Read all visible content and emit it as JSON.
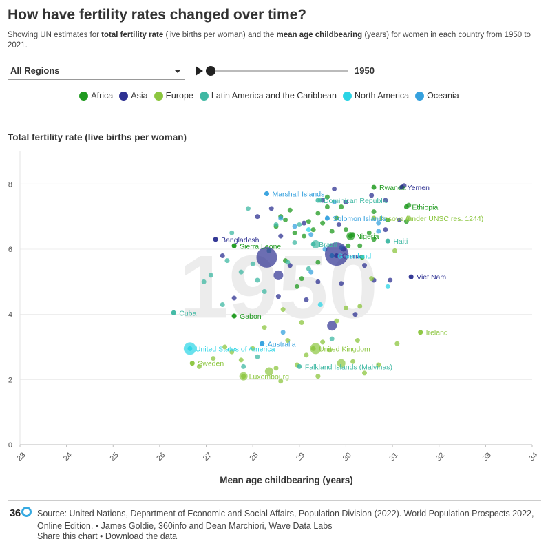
{
  "header": {
    "title": "How have fertility rates changed over time?",
    "subtitle_prefix": "Showing UN estimates for ",
    "subtitle_bold_1": "total fertility rate",
    "subtitle_mid_1": " (live births per woman) and the ",
    "subtitle_bold_2": "mean age childbearing",
    "subtitle_mid_2": " (years) for women in each country from 1950 to 2021."
  },
  "controls": {
    "region_selected": "All Regions",
    "year": "1950",
    "year_progress": 0.0
  },
  "legend": [
    {
      "label": "Africa",
      "color": "#1f9a1f"
    },
    {
      "label": "Asia",
      "color": "#2e3192"
    },
    {
      "label": "Europe",
      "color": "#8cc63f"
    },
    {
      "label": "Latin America and the Caribbean",
      "color": "#3fb8a3"
    },
    {
      "label": "North America",
      "color": "#2ad4e5"
    },
    {
      "label": "Oceania",
      "color": "#36a1de"
    }
  ],
  "chart_data": {
    "type": "scatter",
    "year_watermark": "1950",
    "ylabel": "Total fertility rate (live births per woman)",
    "xlabel": "Mean age childbearing (years)",
    "xlim": [
      23,
      34
    ],
    "ylim": [
      0,
      9
    ],
    "x_ticks": [
      "23",
      "24",
      "25",
      "26",
      "27",
      "28",
      "29",
      "30",
      "31",
      "32",
      "33",
      "34"
    ],
    "y_ticks": [
      "0",
      "2",
      "4",
      "6",
      "8"
    ],
    "labeled_points": [
      {
        "name": "Rwanda",
        "region": "Africa",
        "x": 30.6,
        "y": 7.9,
        "label": "Rwanda"
      },
      {
        "name": "Yemen",
        "region": "Asia",
        "x": 31.2,
        "y": 7.9,
        "label": "Yemen"
      },
      {
        "name": "Marshall Islands",
        "region": "Oceania",
        "x": 28.3,
        "y": 7.7,
        "label": "Marshall Islands"
      },
      {
        "name": "Dominican Republic",
        "region": "Latin America and the Caribbean",
        "x": 29.4,
        "y": 7.5,
        "label": "Dominican Republic"
      },
      {
        "name": "Ethiopia",
        "region": "Africa",
        "x": 31.3,
        "y": 7.3,
        "label": "Ethiopia"
      },
      {
        "name": "Kosovo",
        "region": "Europe",
        "x": 30.6,
        "y": 6.95,
        "label": "Kosovo (under UNSC res. 1244)"
      },
      {
        "name": "Solomon Islands",
        "region": "Oceania",
        "x": 29.6,
        "y": 6.95,
        "label": "Solomon Islands"
      },
      {
        "name": "Nigeria",
        "region": "Africa",
        "x": 30.1,
        "y": 6.4,
        "label": "Nigeria"
      },
      {
        "name": "Haiti",
        "region": "Latin America and the Caribbean",
        "x": 30.9,
        "y": 6.25,
        "label": "Haiti"
      },
      {
        "name": "Bangladesh",
        "region": "Asia",
        "x": 27.2,
        "y": 6.3,
        "label": "Bangladesh"
      },
      {
        "name": "Sierra Leone",
        "region": "Africa",
        "x": 27.6,
        "y": 6.1,
        "label": "Sierra Leone"
      },
      {
        "name": "Brazil",
        "region": "Latin America and the Caribbean",
        "x": 29.3,
        "y": 6.15,
        "label": "Brazil"
      },
      {
        "name": "China",
        "region": "Asia",
        "x": 29.8,
        "y": 5.8,
        "label": "China"
      },
      {
        "name": "Greenland",
        "region": "North America",
        "x": 29.7,
        "y": 5.8,
        "label": "Greenland"
      },
      {
        "name": "Viet Nam",
        "region": "Asia",
        "x": 31.4,
        "y": 5.15,
        "label": "Viet Nam"
      },
      {
        "name": "Cuba",
        "region": "Latin America and the Caribbean",
        "x": 26.3,
        "y": 4.05,
        "label": "Cuba"
      },
      {
        "name": "Gabon",
        "region": "Africa",
        "x": 27.6,
        "y": 3.95,
        "label": "Gabon"
      },
      {
        "name": "Ireland",
        "region": "Europe",
        "x": 31.6,
        "y": 3.45,
        "label": "Ireland"
      },
      {
        "name": "United States of America",
        "region": "North America",
        "x": 26.65,
        "y": 2.95,
        "label": "United States of America"
      },
      {
        "name": "Australia",
        "region": "Oceania",
        "x": 28.2,
        "y": 3.1,
        "label": "Australia"
      },
      {
        "name": "United Kingdom",
        "region": "Europe",
        "x": 29.3,
        "y": 2.95,
        "label": "United Kingdom"
      },
      {
        "name": "Sweden",
        "region": "Europe",
        "x": 26.7,
        "y": 2.5,
        "label": "Sweden"
      },
      {
        "name": "Falkland Islands (Malvinas)",
        "region": "Latin America and the Caribbean",
        "x": 29.0,
        "y": 2.4,
        "label": "Falkland Islands (Malvinas)"
      },
      {
        "name": "Luxembourg",
        "region": "Europe",
        "x": 27.8,
        "y": 2.1,
        "label": "Luxembourg"
      }
    ],
    "bubbles": [
      {
        "region": "Asia",
        "x": 28.3,
        "y": 5.75,
        "r": 15
      },
      {
        "region": "Asia",
        "x": 29.8,
        "y": 5.85,
        "r": 17
      },
      {
        "region": "Asia",
        "x": 28.55,
        "y": 5.2,
        "r": 7
      },
      {
        "region": "Asia",
        "x": 29.7,
        "y": 3.65,
        "r": 7
      },
      {
        "region": "North America",
        "x": 26.65,
        "y": 2.95,
        "r": 9
      },
      {
        "region": "Europe",
        "x": 29.35,
        "y": 2.95,
        "r": 8
      },
      {
        "region": "Europe",
        "x": 29.9,
        "y": 2.5,
        "r": 6
      },
      {
        "region": "Europe",
        "x": 27.8,
        "y": 2.1,
        "r": 6
      },
      {
        "region": "Europe",
        "x": 28.35,
        "y": 2.25,
        "r": 6
      },
      {
        "region": "Latin America and the Caribbean",
        "x": 29.35,
        "y": 6.15,
        "r": 6
      },
      {
        "region": "Africa",
        "x": 30.1,
        "y": 6.4,
        "r": 6
      }
    ],
    "points": [
      {
        "region": "Africa",
        "x": 27.6,
        "y": 6.1
      },
      {
        "region": "Africa",
        "x": 28.5,
        "y": 6.7
      },
      {
        "region": "Africa",
        "x": 28.7,
        "y": 6.9
      },
      {
        "region": "Africa",
        "x": 28.8,
        "y": 7.2
      },
      {
        "region": "Africa",
        "x": 28.9,
        "y": 6.5
      },
      {
        "region": "Africa",
        "x": 29.1,
        "y": 6.4
      },
      {
        "region": "Africa",
        "x": 29.2,
        "y": 6.85
      },
      {
        "region": "Africa",
        "x": 29.3,
        "y": 6.6
      },
      {
        "region": "Africa",
        "x": 29.4,
        "y": 7.1
      },
      {
        "region": "Africa",
        "x": 29.5,
        "y": 6.8
      },
      {
        "region": "Africa",
        "x": 29.6,
        "y": 7.3
      },
      {
        "region": "Africa",
        "x": 29.7,
        "y": 6.55
      },
      {
        "region": "Africa",
        "x": 29.8,
        "y": 6.95
      },
      {
        "region": "Africa",
        "x": 29.9,
        "y": 7.3
      },
      {
        "region": "Africa",
        "x": 30.0,
        "y": 6.6
      },
      {
        "region": "Africa",
        "x": 30.15,
        "y": 6.45
      },
      {
        "region": "Africa",
        "x": 30.3,
        "y": 6.1
      },
      {
        "region": "Africa",
        "x": 30.35,
        "y": 5.75
      },
      {
        "region": "Africa",
        "x": 30.5,
        "y": 6.5
      },
      {
        "region": "Africa",
        "x": 30.6,
        "y": 7.15
      },
      {
        "region": "Africa",
        "x": 30.9,
        "y": 6.9
      },
      {
        "region": "Africa",
        "x": 31.2,
        "y": 7.9
      },
      {
        "region": "Africa",
        "x": 31.35,
        "y": 7.35
      },
      {
        "region": "Africa",
        "x": 31.3,
        "y": 6.85
      },
      {
        "region": "Africa",
        "x": 29.05,
        "y": 5.1
      },
      {
        "region": "Africa",
        "x": 28.95,
        "y": 4.85
      },
      {
        "region": "Africa",
        "x": 29.4,
        "y": 5.6
      },
      {
        "region": "Africa",
        "x": 28.7,
        "y": 5.65
      },
      {
        "region": "Africa",
        "x": 27.6,
        "y": 3.95
      },
      {
        "region": "Africa",
        "x": 30.05,
        "y": 6.1
      },
      {
        "region": "Africa",
        "x": 29.6,
        "y": 7.6
      },
      {
        "region": "Africa",
        "x": 28.6,
        "y": 7.0
      },
      {
        "region": "Africa",
        "x": 30.6,
        "y": 6.3
      },
      {
        "region": "Asia",
        "x": 27.2,
        "y": 6.3
      },
      {
        "region": "Asia",
        "x": 27.35,
        "y": 5.8
      },
      {
        "region": "Asia",
        "x": 27.6,
        "y": 4.5
      },
      {
        "region": "Asia",
        "x": 28.1,
        "y": 7.0
      },
      {
        "region": "Asia",
        "x": 28.4,
        "y": 7.25
      },
      {
        "region": "Asia",
        "x": 28.55,
        "y": 4.55
      },
      {
        "region": "Asia",
        "x": 28.8,
        "y": 5.5
      },
      {
        "region": "Asia",
        "x": 29.1,
        "y": 6.8
      },
      {
        "region": "Asia",
        "x": 29.15,
        "y": 4.45
      },
      {
        "region": "Asia",
        "x": 29.4,
        "y": 5.0
      },
      {
        "region": "Asia",
        "x": 29.5,
        "y": 7.5
      },
      {
        "region": "Asia",
        "x": 29.75,
        "y": 7.85
      },
      {
        "region": "Asia",
        "x": 29.85,
        "y": 6.75
      },
      {
        "region": "Asia",
        "x": 29.9,
        "y": 4.95
      },
      {
        "region": "Asia",
        "x": 30.0,
        "y": 7.45
      },
      {
        "region": "Asia",
        "x": 30.2,
        "y": 4.0
      },
      {
        "region": "Asia",
        "x": 30.4,
        "y": 5.5
      },
      {
        "region": "Asia",
        "x": 30.55,
        "y": 7.65
      },
      {
        "region": "Asia",
        "x": 30.6,
        "y": 5.05
      },
      {
        "region": "Asia",
        "x": 30.85,
        "y": 7.5
      },
      {
        "region": "Asia",
        "x": 30.95,
        "y": 5.05
      },
      {
        "region": "Asia",
        "x": 31.15,
        "y": 6.9
      },
      {
        "region": "Asia",
        "x": 31.25,
        "y": 7.95
      },
      {
        "region": "Asia",
        "x": 31.4,
        "y": 5.15
      },
      {
        "region": "Asia",
        "x": 28.6,
        "y": 6.4
      },
      {
        "region": "Asia",
        "x": 29.95,
        "y": 6.0
      },
      {
        "region": "Asia",
        "x": 30.85,
        "y": 6.6
      },
      {
        "region": "Europe",
        "x": 26.7,
        "y": 2.5
      },
      {
        "region": "Europe",
        "x": 26.85,
        "y": 2.4
      },
      {
        "region": "Europe",
        "x": 27.15,
        "y": 2.65
      },
      {
        "region": "Europe",
        "x": 27.4,
        "y": 3.0
      },
      {
        "region": "Europe",
        "x": 27.55,
        "y": 2.85
      },
      {
        "region": "Europe",
        "x": 27.75,
        "y": 2.6
      },
      {
        "region": "Europe",
        "x": 28.0,
        "y": 2.95
      },
      {
        "region": "Europe",
        "x": 28.25,
        "y": 3.6
      },
      {
        "region": "Europe",
        "x": 28.5,
        "y": 2.35
      },
      {
        "region": "Europe",
        "x": 28.65,
        "y": 4.15
      },
      {
        "region": "Europe",
        "x": 28.75,
        "y": 3.2
      },
      {
        "region": "Europe",
        "x": 28.95,
        "y": 2.45
      },
      {
        "region": "Europe",
        "x": 29.05,
        "y": 3.75
      },
      {
        "region": "Europe",
        "x": 29.15,
        "y": 2.75
      },
      {
        "region": "Europe",
        "x": 29.4,
        "y": 2.1
      },
      {
        "region": "Europe",
        "x": 29.5,
        "y": 3.15
      },
      {
        "region": "Europe",
        "x": 29.65,
        "y": 2.9
      },
      {
        "region": "Europe",
        "x": 29.8,
        "y": 3.8
      },
      {
        "region": "Europe",
        "x": 30.0,
        "y": 4.2
      },
      {
        "region": "Europe",
        "x": 30.15,
        "y": 2.55
      },
      {
        "region": "Europe",
        "x": 30.25,
        "y": 3.2
      },
      {
        "region": "Europe",
        "x": 30.4,
        "y": 2.2
      },
      {
        "region": "Europe",
        "x": 30.55,
        "y": 5.1
      },
      {
        "region": "Europe",
        "x": 30.7,
        "y": 2.45
      },
      {
        "region": "Europe",
        "x": 31.05,
        "y": 5.95
      },
      {
        "region": "Europe",
        "x": 31.1,
        "y": 3.1
      },
      {
        "region": "Europe",
        "x": 31.6,
        "y": 3.45
      },
      {
        "region": "Europe",
        "x": 31.35,
        "y": 6.95
      },
      {
        "region": "Europe",
        "x": 28.6,
        "y": 1.95
      },
      {
        "region": "Europe",
        "x": 30.3,
        "y": 4.25
      },
      {
        "region": "Latin America and the Caribbean",
        "x": 26.3,
        "y": 4.05
      },
      {
        "region": "Latin America and the Caribbean",
        "x": 26.95,
        "y": 5.0
      },
      {
        "region": "Latin America and the Caribbean",
        "x": 27.1,
        "y": 5.2
      },
      {
        "region": "Latin America and the Caribbean",
        "x": 27.35,
        "y": 4.3
      },
      {
        "region": "Latin America and the Caribbean",
        "x": 27.45,
        "y": 5.65
      },
      {
        "region": "Latin America and the Caribbean",
        "x": 27.55,
        "y": 6.5
      },
      {
        "region": "Latin America and the Caribbean",
        "x": 27.75,
        "y": 5.3
      },
      {
        "region": "Latin America and the Caribbean",
        "x": 27.9,
        "y": 7.25
      },
      {
        "region": "Latin America and the Caribbean",
        "x": 28.0,
        "y": 5.55
      },
      {
        "region": "Latin America and the Caribbean",
        "x": 28.25,
        "y": 4.7
      },
      {
        "region": "Latin America and the Caribbean",
        "x": 28.35,
        "y": 5.95
      },
      {
        "region": "Latin America and the Caribbean",
        "x": 28.5,
        "y": 6.75
      },
      {
        "region": "Latin America and the Caribbean",
        "x": 28.75,
        "y": 5.6
      },
      {
        "region": "Latin America and the Caribbean",
        "x": 28.9,
        "y": 6.2
      },
      {
        "region": "Latin America and the Caribbean",
        "x": 29.0,
        "y": 6.75
      },
      {
        "region": "Latin America and the Caribbean",
        "x": 29.2,
        "y": 5.4
      },
      {
        "region": "Latin America and the Caribbean",
        "x": 29.45,
        "y": 7.5
      },
      {
        "region": "Latin America and the Caribbean",
        "x": 29.7,
        "y": 3.25
      },
      {
        "region": "Latin America and the Caribbean",
        "x": 30.9,
        "y": 6.25
      },
      {
        "region": "Latin America and the Caribbean",
        "x": 28.1,
        "y": 5.05
      },
      {
        "region": "Latin America and the Caribbean",
        "x": 27.8,
        "y": 2.4
      },
      {
        "region": "Latin America and the Caribbean",
        "x": 28.1,
        "y": 2.7
      },
      {
        "region": "North America",
        "x": 29.7,
        "y": 5.8
      },
      {
        "region": "North America",
        "x": 29.45,
        "y": 4.3
      },
      {
        "region": "North America",
        "x": 30.9,
        "y": 4.85
      },
      {
        "region": "North America",
        "x": 29.2,
        "y": 6.6
      },
      {
        "region": "Oceania",
        "x": 28.3,
        "y": 7.7
      },
      {
        "region": "Oceania",
        "x": 28.6,
        "y": 6.95
      },
      {
        "region": "Oceania",
        "x": 28.9,
        "y": 6.7
      },
      {
        "region": "Oceania",
        "x": 29.25,
        "y": 6.45
      },
      {
        "region": "Oceania",
        "x": 29.55,
        "y": 6.0
      },
      {
        "region": "Oceania",
        "x": 29.6,
        "y": 6.95
      },
      {
        "region": "Oceania",
        "x": 29.9,
        "y": 6.05
      },
      {
        "region": "Oceania",
        "x": 30.7,
        "y": 6.55
      },
      {
        "region": "Oceania",
        "x": 30.7,
        "y": 6.8
      },
      {
        "region": "Oceania",
        "x": 28.2,
        "y": 3.1
      },
      {
        "region": "Oceania",
        "x": 28.65,
        "y": 3.45
      },
      {
        "region": "Oceania",
        "x": 29.25,
        "y": 5.3
      },
      {
        "region": "Oceania",
        "x": 29.75,
        "y": 7.45
      }
    ]
  },
  "footer": {
    "logo_text": "36",
    "source": "Source: United Nations, Department of Economic and Social Affairs, Population Division (2022). World Population Prospects 2022, Online Edition. • James Goldie, 360info and Dean Marchiori, Wave Data Labs",
    "share_label": "Share this chart",
    "separator": " • ",
    "download_label": "Download the data"
  }
}
